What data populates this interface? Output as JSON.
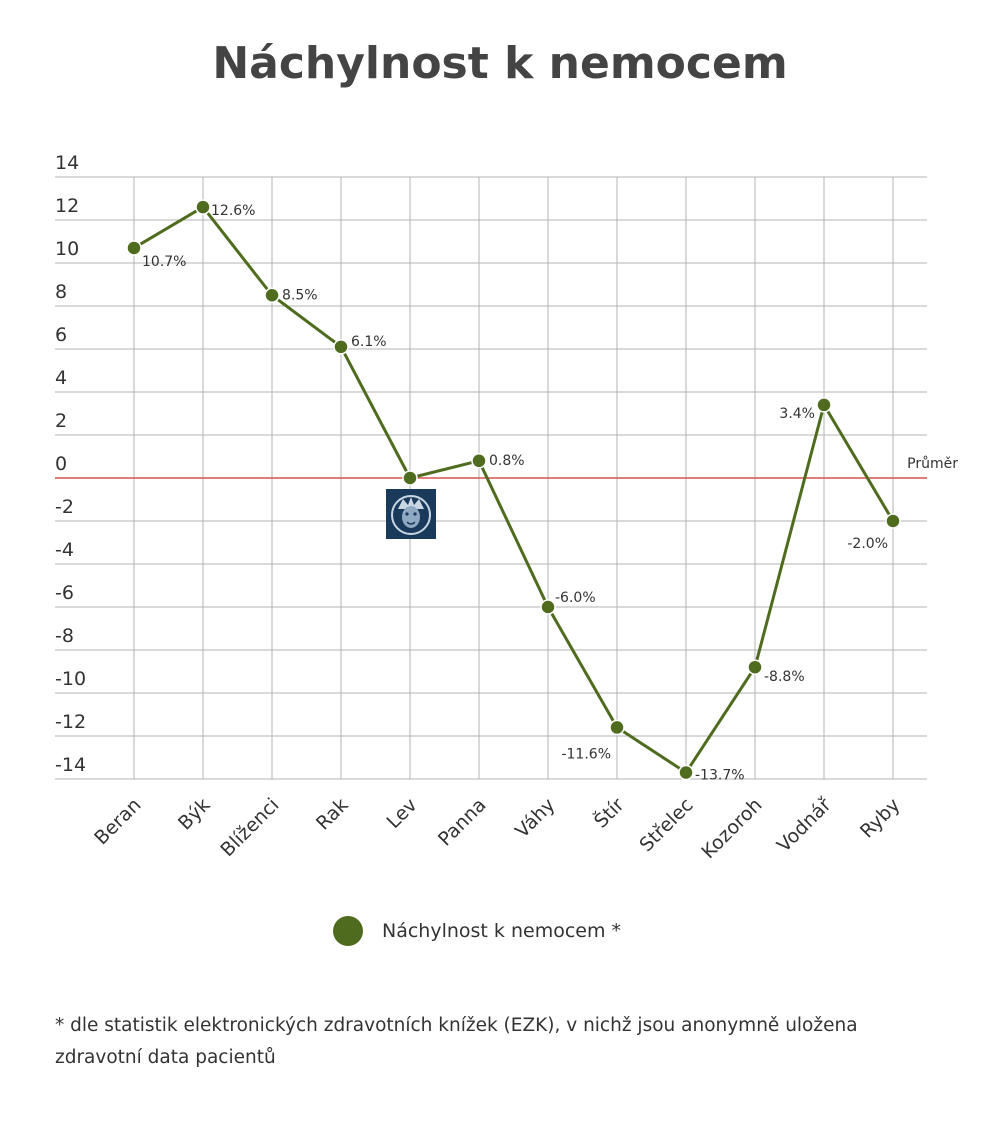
{
  "chart_data": {
    "type": "line",
    "title": "Náchylnost k nemocem",
    "categories": [
      "Beran",
      "Býk",
      "Blíženci",
      "Rak",
      "Lev",
      "Panna",
      "Váhy",
      "Štír",
      "Střelec",
      "Kozoroh",
      "Vodnář",
      "Ryby"
    ],
    "series": [
      {
        "name": "Náchylnost k nemocem *",
        "values": [
          10.7,
          12.6,
          8.5,
          6.1,
          0.0,
          0.8,
          -6.0,
          -11.6,
          -13.7,
          -8.8,
          3.4,
          -2.0
        ],
        "data_labels": [
          "10.7%",
          "12.6%",
          "8.5%",
          "6.1%",
          "",
          "0.8%",
          "-6.0%",
          "-11.6%",
          "-13.7%",
          "-8.8%",
          "3.4%",
          "-2.0%"
        ],
        "color": "#4f6b1e"
      }
    ],
    "y_ticks": [
      "14",
      "12",
      "10",
      "8",
      "6",
      "4",
      "2",
      "0",
      "-2",
      "-4",
      "-6",
      "-8",
      "-10",
      "-12",
      "-14"
    ],
    "ylim": [
      -14,
      14
    ],
    "grid": true,
    "reference_line": {
      "value": 0,
      "label": "Průměr",
      "color": "#d9534f"
    },
    "legend_position": "bottom"
  },
  "legend": {
    "label": "Náchylnost k nemocem *"
  },
  "footnote": "* dle statistik elektronických zdravotních knížek (EZK), v nichž jsou anonymně uložena zdravotní data pacientů",
  "icon": {
    "name": "lion-icon",
    "background": "#1a3a5c"
  }
}
